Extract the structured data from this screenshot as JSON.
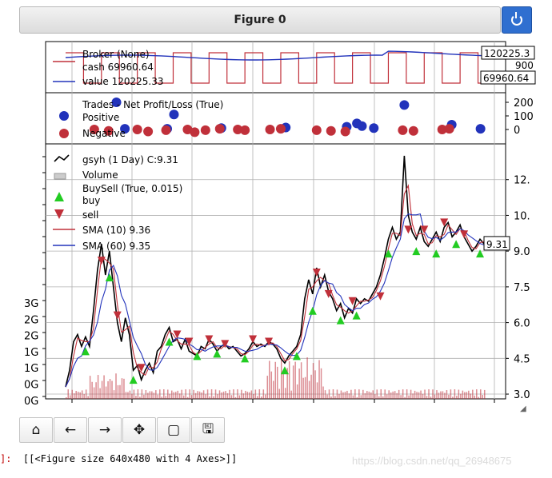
{
  "window": {
    "title": "Figure 0"
  },
  "output": {
    "prompt": "]:",
    "text": "[[<Figure size 640x480 with 4 Axes>]]",
    "watermark": "https://blog.csdn.net/qq_26948675"
  },
  "toolbar": [
    {
      "icon": "home-icon",
      "glyph": "⌂"
    },
    {
      "icon": "back-icon",
      "glyph": "←"
    },
    {
      "icon": "forward-icon",
      "glyph": "→"
    },
    {
      "icon": "pan-icon",
      "glyph": "✥"
    },
    {
      "icon": "zoom-rect-icon",
      "glyph": "▢"
    },
    {
      "icon": "save-icon",
      "glyph": "🖫"
    }
  ],
  "colors": {
    "cash": "#c0303a",
    "value": "#2233bb",
    "positive": "#2233bb",
    "negative": "#c0303a",
    "buy": "#22cc22",
    "sell": "#c0303a",
    "sma10": "#c0303a",
    "sma60": "#2233bb",
    "close": "#000000",
    "volume": "#c0303a",
    "grid": "#b0b0b0"
  },
  "chart_data": [
    {
      "type": "line",
      "panel": "broker",
      "series": [
        {
          "name": "Broker (None)",
          "values": []
        },
        {
          "name": "cash 69960.64",
          "last": 69960.64
        },
        {
          "name": "value 120225.33",
          "last": 120225.33
        }
      ],
      "tag_labels": [
        "120225.3",
        "69960.64"
      ],
      "tick_labels": [
        "900"
      ]
    },
    {
      "type": "scatter",
      "panel": "trades",
      "title": "Trades - Net Profit/Loss (True)",
      "series": [
        {
          "name": "Positive"
        },
        {
          "name": "Negative"
        }
      ],
      "tick_labels": [
        "200",
        "100",
        "0"
      ]
    },
    {
      "type": "line",
      "panel": "price",
      "series": [
        {
          "name": "gsyh (1 Day) C:9.31",
          "last": 9.31
        },
        {
          "name": "Volume"
        },
        {
          "name": "BuySell (True, 0.015)"
        },
        {
          "name": "buy"
        },
        {
          "name": "sell"
        },
        {
          "name": "SMA (10) 9.36",
          "last": 9.36
        },
        {
          "name": "SMA (60) 9.35",
          "last": 9.35
        }
      ],
      "last_tag": "9.31",
      "y_ticks": [
        3.0,
        4.5,
        6.0,
        7.5,
        9.0,
        10.5,
        12.0
      ],
      "y_tick_labels": [
        "3.0",
        "4.5",
        "6.0",
        "7.5",
        "9.0",
        "10.",
        "12."
      ],
      "volume_tick_labels": [
        "3G",
        "2G",
        "2G",
        "1G",
        "1G",
        "0G",
        "0G"
      ],
      "ylim": [
        2.8,
        13.5
      ],
      "close_points": [
        [
          0,
          3.3
        ],
        [
          2,
          4.0
        ],
        [
          4,
          5.2
        ],
        [
          6,
          5.5
        ],
        [
          8,
          5.0
        ],
        [
          10,
          5.4
        ],
        [
          12,
          5.0
        ],
        [
          14,
          6.5
        ],
        [
          16,
          8.2
        ],
        [
          18,
          9.3
        ],
        [
          20,
          8.0
        ],
        [
          22,
          9.0
        ],
        [
          24,
          7.5
        ],
        [
          26,
          6.0
        ],
        [
          28,
          5.2
        ],
        [
          30,
          6.2
        ],
        [
          32,
          5.5
        ],
        [
          34,
          4.0
        ],
        [
          36,
          4.2
        ],
        [
          38,
          3.6
        ],
        [
          40,
          4.0
        ],
        [
          42,
          4.3
        ],
        [
          44,
          3.9
        ],
        [
          46,
          4.8
        ],
        [
          48,
          5.0
        ],
        [
          50,
          5.5
        ],
        [
          52,
          5.8
        ],
        [
          54,
          5.2
        ],
        [
          56,
          5.3
        ],
        [
          58,
          4.9
        ],
        [
          60,
          5.3
        ],
        [
          62,
          4.8
        ],
        [
          64,
          4.7
        ],
        [
          66,
          4.6
        ],
        [
          68,
          5.0
        ],
        [
          70,
          4.9
        ],
        [
          72,
          5.3
        ],
        [
          74,
          5.1
        ],
        [
          76,
          4.8
        ],
        [
          78,
          5.0
        ],
        [
          80,
          5.1
        ],
        [
          82,
          4.9
        ],
        [
          84,
          5.0
        ],
        [
          86,
          4.8
        ],
        [
          88,
          4.6
        ],
        [
          90,
          4.7
        ],
        [
          92,
          4.9
        ],
        [
          94,
          5.2
        ],
        [
          96,
          5.0
        ],
        [
          98,
          5.1
        ],
        [
          100,
          5.0
        ],
        [
          102,
          5.2
        ],
        [
          104,
          5.1
        ],
        [
          106,
          4.9
        ],
        [
          108,
          4.5
        ],
        [
          110,
          4.3
        ],
        [
          112,
          4.6
        ],
        [
          114,
          4.8
        ],
        [
          116,
          5.0
        ],
        [
          118,
          5.5
        ],
        [
          120,
          7.0
        ],
        [
          122,
          7.8
        ],
        [
          124,
          7.2
        ],
        [
          126,
          8.3
        ],
        [
          128,
          7.5
        ],
        [
          130,
          8.0
        ],
        [
          132,
          7.3
        ],
        [
          134,
          7.0
        ],
        [
          136,
          6.5
        ],
        [
          138,
          6.8
        ],
        [
          140,
          6.2
        ],
        [
          142,
          6.6
        ],
        [
          144,
          6.4
        ],
        [
          146,
          7.0
        ],
        [
          148,
          6.8
        ],
        [
          150,
          7.0
        ],
        [
          152,
          6.9
        ],
        [
          154,
          7.2
        ],
        [
          156,
          7.5
        ],
        [
          158,
          8.0
        ],
        [
          160,
          8.7
        ],
        [
          162,
          9.5
        ],
        [
          164,
          10.0
        ],
        [
          166,
          9.5
        ],
        [
          168,
          9.8
        ],
        [
          170,
          13.0
        ],
        [
          172,
          10.5
        ],
        [
          174,
          9.8
        ],
        [
          176,
          9.5
        ],
        [
          178,
          10.0
        ],
        [
          180,
          9.4
        ],
        [
          182,
          9.2
        ],
        [
          184,
          9.5
        ],
        [
          186,
          9.8
        ],
        [
          188,
          9.4
        ],
        [
          190,
          10.0
        ],
        [
          192,
          10.2
        ],
        [
          194,
          9.6
        ],
        [
          196,
          9.8
        ],
        [
          198,
          10.1
        ],
        [
          200,
          9.6
        ],
        [
          202,
          9.3
        ],
        [
          204,
          9.0
        ],
        [
          206,
          9.2
        ],
        [
          208,
          9.5
        ],
        [
          210,
          9.31
        ]
      ]
    }
  ]
}
